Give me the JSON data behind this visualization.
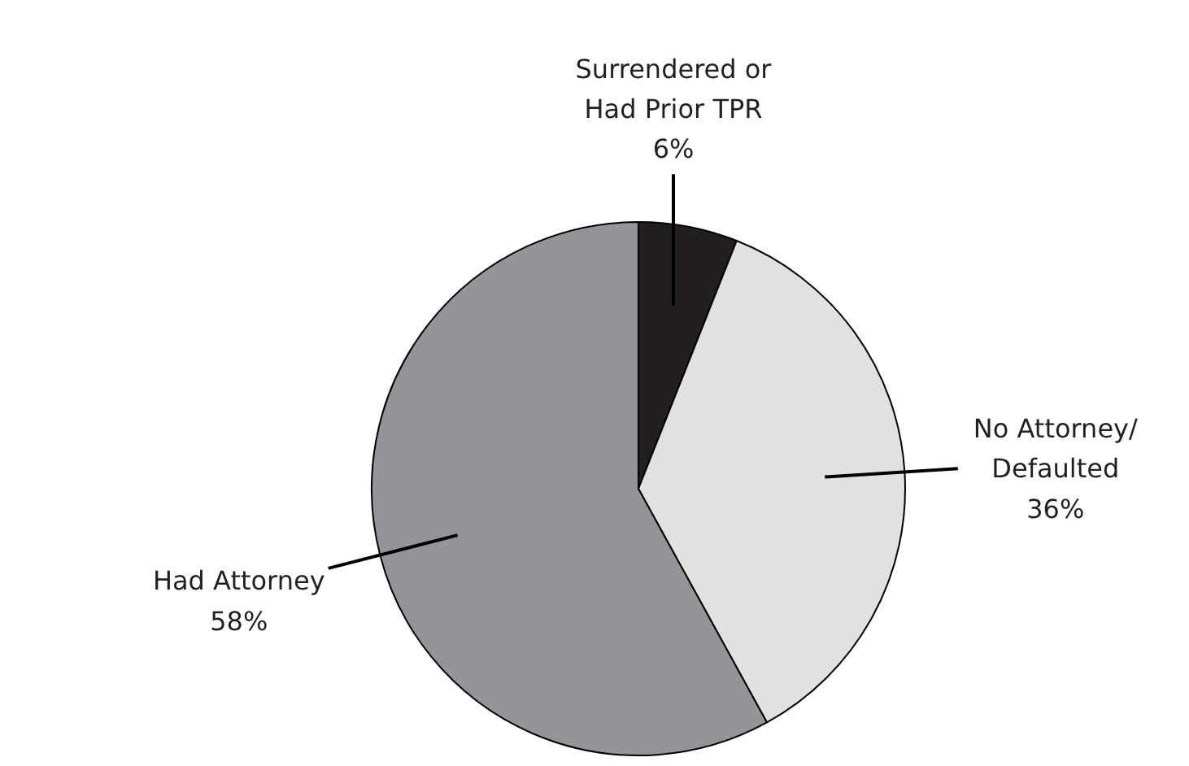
{
  "chart_data": {
    "type": "pie",
    "categories": [
      "Surrendered or Had Prior TPR",
      "No Attorney/ Defaulted",
      "Had Attorney"
    ],
    "values": [
      6,
      36,
      58
    ],
    "colors": [
      "#231f20",
      "#e1e1e3",
      "#939598"
    ],
    "value_labels": [
      "6%",
      "36%",
      "58%"
    ],
    "legend": false
  }
}
